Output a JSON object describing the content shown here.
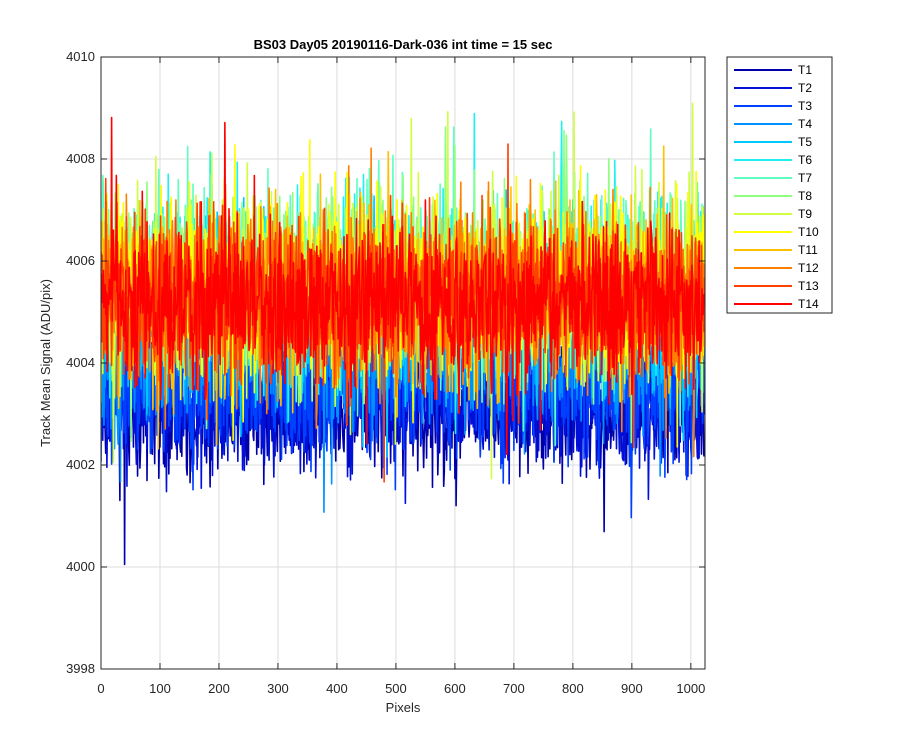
{
  "chart_data": {
    "type": "line",
    "title": "BS03 Day05 20190116-Dark-036 int time = 15 sec",
    "xlabel": "Pixels",
    "ylabel": "Track Mean Signal (ADU/pix)",
    "xlim": [
      0,
      1024
    ],
    "ylim": [
      3998,
      4010
    ],
    "xticks": [
      0,
      100,
      200,
      300,
      400,
      500,
      600,
      700,
      800,
      900,
      1000
    ],
    "yticks": [
      3998,
      4000,
      4002,
      4004,
      4006,
      4008,
      4010
    ],
    "grid": true,
    "legend_position": "outside-right",
    "x_points": 1024,
    "series": [
      {
        "name": "T1",
        "color": "#0000a8",
        "mean": 4003.1,
        "spread": 0.75
      },
      {
        "name": "T2",
        "color": "#0010d8",
        "mean": 4003.3,
        "spread": 0.75
      },
      {
        "name": "T3",
        "color": "#0040ff",
        "mean": 4003.6,
        "spread": 0.8
      },
      {
        "name": "T4",
        "color": "#0090ff",
        "mean": 4004.3,
        "spread": 0.85
      },
      {
        "name": "T5",
        "color": "#00c8ff",
        "mean": 4005.0,
        "spread": 0.95
      },
      {
        "name": "T6",
        "color": "#20f0f0",
        "mean": 4005.5,
        "spread": 1.0
      },
      {
        "name": "T7",
        "color": "#60ffc0",
        "mean": 4005.6,
        "spread": 1.0
      },
      {
        "name": "T8",
        "color": "#90ff80",
        "mean": 4005.6,
        "spread": 1.0
      },
      {
        "name": "T9",
        "color": "#d0ff40",
        "mean": 4005.5,
        "spread": 1.0
      },
      {
        "name": "T10",
        "color": "#ffff00",
        "mean": 4005.4,
        "spread": 1.0
      },
      {
        "name": "T11",
        "color": "#ffc000",
        "mean": 4005.3,
        "spread": 0.95
      },
      {
        "name": "T12",
        "color": "#ff8000",
        "mean": 4005.3,
        "spread": 0.9
      },
      {
        "name": "T13",
        "color": "#ff4000",
        "mean": 4005.3,
        "spread": 0.9
      },
      {
        "name": "T14",
        "color": "#ff0000",
        "mean": 4005.2,
        "spread": 0.9
      }
    ]
  }
}
